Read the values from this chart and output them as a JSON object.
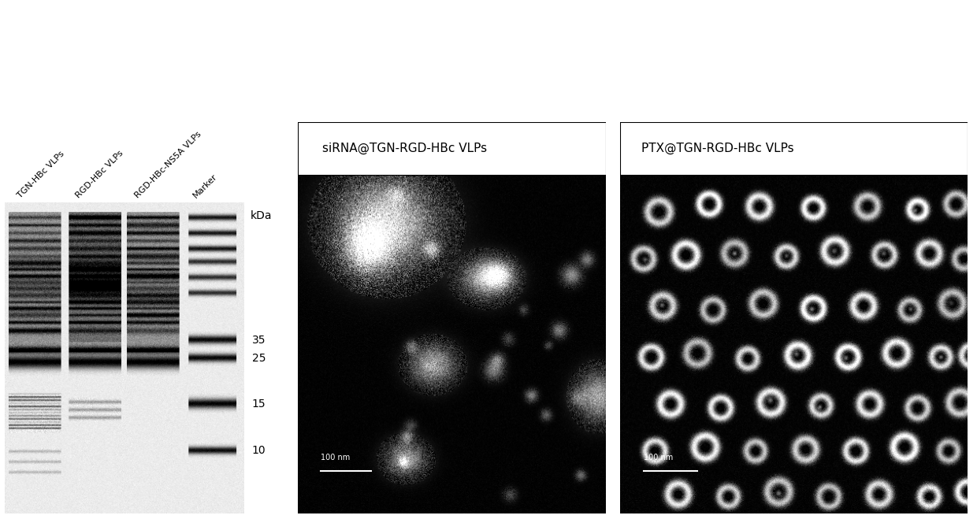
{
  "panel_labels": {
    "sirna": "siRNA@TGN-RGD-HBc VLPs",
    "ptx": "PTX@TGN-RGD-HBc VLPs"
  },
  "gel_lane_labels": [
    "TGN-HBc VLPs",
    "RGD-HBc VLPs",
    "RGD-HBc-NS5A VLPs",
    "Marker"
  ],
  "kda_label": "kDa",
  "marker_values": [
    35,
    25,
    15,
    10
  ],
  "scale_bar_label": "100 nm",
  "background_color": "#ffffff"
}
